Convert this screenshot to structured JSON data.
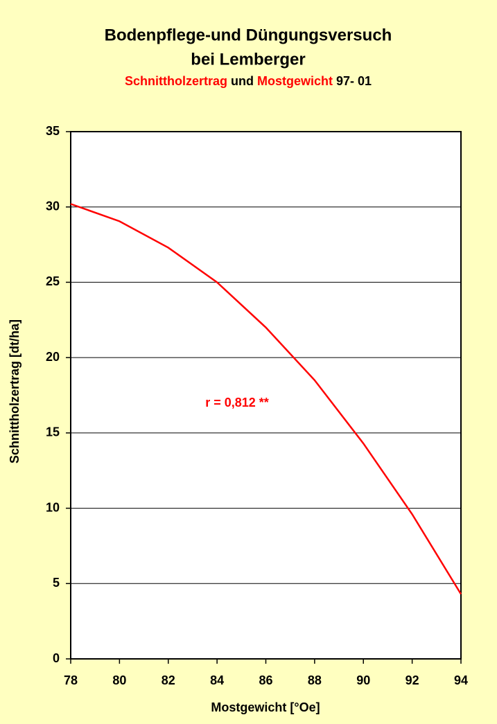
{
  "chart_data": {
    "type": "line",
    "title": [
      "Bodenpflege-und Düngungsversuch",
      "bei Lemberger"
    ],
    "subtitle": [
      {
        "text": "Schnittholzertrag",
        "color": "#ff0000"
      },
      {
        "text": "und",
        "color": "#000000"
      },
      {
        "text": "Mostgewicht",
        "color": "#ff0000"
      },
      {
        "text": "97- 01",
        "color": "#000000"
      }
    ],
    "x_label": "Mostgewicht [°Oe]",
    "y_label": "Schnittholzertrag [dt/ha]",
    "annotation": {
      "text": "r = 0,812 **",
      "color": "#ff0000"
    },
    "x": [
      78,
      80,
      82,
      84,
      86,
      88,
      90,
      92,
      94
    ],
    "series": [
      {
        "name": "Schnittholzertrag",
        "color": "#ff0000",
        "values": [
          30.2,
          29.05,
          27.3,
          25.0,
          22.0,
          18.5,
          14.3,
          9.6,
          4.3
        ]
      }
    ],
    "xlim": [
      78,
      94
    ],
    "xticks": [
      78,
      80,
      82,
      84,
      86,
      88,
      90,
      92,
      94
    ],
    "ylim": [
      0,
      35
    ],
    "yticks": [
      0,
      5,
      10,
      15,
      20,
      25,
      30,
      35
    ],
    "grid": true
  }
}
